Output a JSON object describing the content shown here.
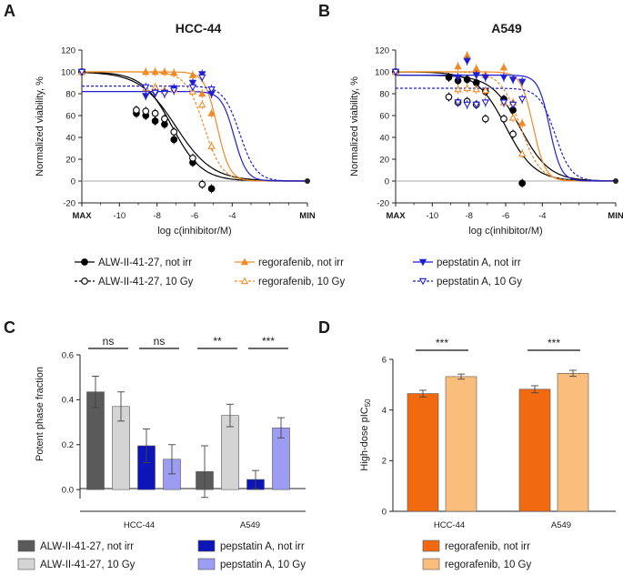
{
  "panels": {
    "A": {
      "letter": "A",
      "title": "HCC-44",
      "ylabel": "Normalized viability, %",
      "xlabel": "log c(inhibitor/M)",
      "yticks": [
        "-20",
        "0",
        "20",
        "40",
        "60",
        "80",
        "100",
        "120"
      ],
      "xticks": [
        "MAX",
        "-10",
        "-8",
        "-6",
        "-4",
        "MIN"
      ]
    },
    "B": {
      "letter": "B",
      "title": "A549",
      "ylabel": "Normalized viability, %",
      "xlabel": "log c(inhibitor/M)",
      "yticks": [
        "-20",
        "0",
        "20",
        "40",
        "60",
        "80",
        "100",
        "120"
      ],
      "xticks": [
        "MAX",
        "-10",
        "-8",
        "-6",
        "-4",
        "MIN"
      ]
    },
    "C": {
      "letter": "C",
      "ylabel": "Potent phase fraction",
      "yticks": [
        "0.0",
        "0.2",
        "0.4",
        "0.6"
      ],
      "groups": [
        "HCC-44",
        "A549"
      ],
      "sig_labels": [
        "ns",
        "ns",
        "**",
        "***"
      ]
    },
    "D": {
      "letter": "D",
      "ylabel_main": "High-dose pIC",
      "ylabel_sub": "50",
      "yticks": [
        "0",
        "2",
        "4",
        "6"
      ],
      "groups": [
        "HCC-44",
        "A549"
      ],
      "sig_labels": [
        "***",
        "***"
      ]
    }
  },
  "legends": {
    "AB": [
      {
        "label": "ALW-II-41-27, not irr",
        "color": "#000000"
      },
      {
        "label": "ALW-II-41-27, 10 Gy",
        "color": "#000000"
      },
      {
        "label": "regorafenib, not irr",
        "color": "#f08a24"
      },
      {
        "label": "regorafenib, 10 Gy",
        "color": "#f08a24"
      },
      {
        "label": "pepstatin A, not irr",
        "color": "#1f1fd6"
      },
      {
        "label": "pepstatin A, 10 Gy",
        "color": "#1f1fd6"
      }
    ],
    "C": [
      {
        "label": "ALW-II-41-27, not irr",
        "color": "#5a5a5a"
      },
      {
        "label": "ALW-II-41-27, 10 Gy",
        "color": "#d4d4d4"
      },
      {
        "label": "pepstatin A, not irr",
        "color": "#0d14b8"
      },
      {
        "label": "pepstatin A, 10 Gy",
        "color": "#9c9cf3"
      }
    ],
    "D": [
      {
        "label": "regorafenib, not irr",
        "color": "#f26a10"
      },
      {
        "label": "regorafenib, 10 Gy",
        "color": "#fbbd7c"
      }
    ]
  },
  "chart_data": [
    {
      "id": "A",
      "type": "line",
      "title": "HCC-44",
      "xlabel": "log c(inhibitor/M)",
      "ylabel": "Normalized viability, %",
      "xlim": [
        -12,
        0
      ],
      "ylim": [
        -20,
        120
      ],
      "series": [
        {
          "name": "ALW-II-41-27, not irr",
          "color": "#000000",
          "dashed": false,
          "marker": "filled-circle",
          "x": [
            -12,
            -9.1,
            -8.6,
            -8.1,
            -7.6,
            -7.1,
            -6.1,
            -5.1
          ],
          "y": [
            100,
            62,
            60,
            55,
            52,
            38,
            17,
            -7
          ]
        },
        {
          "name": "ALW-II-41-27, 10 Gy",
          "color": "#000000",
          "dashed": false,
          "marker": "open-circle",
          "x": [
            -12,
            -9.1,
            -8.6,
            -8.1,
            -7.6,
            -7.1,
            -6.1,
            -5.6
          ],
          "y": [
            100,
            65,
            64,
            62,
            57,
            45,
            21,
            -3
          ]
        },
        {
          "name": "regorafenib, not irr",
          "color": "#f08a24",
          "dashed": false,
          "marker": "filled-triangle",
          "x": [
            -12,
            -8.6,
            -8.1,
            -7.6,
            -7.1,
            -6.1,
            -5.6,
            -5.1
          ],
          "y": [
            100,
            100,
            100,
            100,
            99,
            97,
            80,
            62
          ]
        },
        {
          "name": "regorafenib, 10 Gy",
          "color": "#f08a24",
          "dashed": true,
          "marker": "open-triangle",
          "x": [
            -12,
            -8.6,
            -8.1,
            -7.6,
            -7.1,
            -6.1,
            -5.6,
            -5.1
          ],
          "y": [
            100,
            85,
            86,
            83,
            84,
            82,
            70,
            32
          ]
        },
        {
          "name": "pepstatin A, not irr",
          "color": "#1f1fd6",
          "dashed": false,
          "marker": "filled-down-triangle",
          "x": [
            -12,
            -8.6,
            -8.1,
            -7.6,
            -7.1,
            -6.1,
            -5.6,
            -5.1
          ],
          "y": [
            100,
            78,
            80,
            81,
            85,
            90,
            98,
            80
          ]
        },
        {
          "name": "pepstatin A, 10 Gy",
          "color": "#1f1fd6",
          "dashed": true,
          "marker": "open-down-triangle",
          "x": [
            -12,
            -8.6,
            -8.1,
            -7.6,
            -7.1,
            -6.1,
            -5.6,
            -5.1
          ],
          "y": [
            100,
            86,
            81,
            80,
            83,
            86,
            95,
            84
          ]
        }
      ],
      "fits": [
        {
          "series": "ALW-II-41-27, not irr",
          "top": 100,
          "bottom": 0,
          "logIC50": -7.2,
          "hill": 0.55
        },
        {
          "series": "ALW-II-41-27, 10 Gy",
          "top": 100,
          "bottom": 0,
          "logIC50": -7.0,
          "hill": 0.45
        },
        {
          "series": "regorafenib, not irr",
          "top": 100,
          "bottom": 0,
          "logIC50": -4.8,
          "hill": 1.3
        },
        {
          "series": "regorafenib, 10 Gy",
          "top": 100,
          "bottom": 0,
          "logIC50": -5.5,
          "hill": 0.9
        },
        {
          "series": "pepstatin A, not irr",
          "top": 82,
          "bottom": 0,
          "logIC50": -3.9,
          "hill": 1.3
        },
        {
          "series": "pepstatin A, 10 Gy",
          "top": 87,
          "bottom": 0,
          "logIC50": -3.6,
          "hill": 1.0
        }
      ]
    },
    {
      "id": "B",
      "type": "line",
      "title": "A549",
      "xlabel": "log c(inhibitor/M)",
      "ylabel": "Normalized viability, %",
      "xlim": [
        -12,
        0
      ],
      "ylim": [
        -20,
        120
      ],
      "series": [
        {
          "name": "ALW-II-41-27, not irr",
          "color": "#000000",
          "dashed": false,
          "marker": "filled-circle",
          "x": [
            -12,
            -9.1,
            -8.6,
            -8.1,
            -7.6,
            -7.1,
            -6.1,
            -5.6,
            -5.1
          ],
          "y": [
            100,
            95,
            92,
            93,
            90,
            82,
            75,
            65,
            -2
          ]
        },
        {
          "name": "ALW-II-41-27, 10 Gy",
          "color": "#000000",
          "dashed": false,
          "marker": "open-circle",
          "x": [
            -12,
            -9.1,
            -8.6,
            -8.1,
            -7.6,
            -7.1,
            -6.1,
            -5.6
          ],
          "y": [
            100,
            77,
            72,
            73,
            70,
            57,
            57,
            43
          ]
        },
        {
          "name": "regorafenib, not irr",
          "color": "#f08a24",
          "dashed": false,
          "marker": "filled-triangle",
          "x": [
            -12,
            -8.6,
            -8.1,
            -7.6,
            -7.1,
            -6.1,
            -5.6,
            -5.1
          ],
          "y": [
            100,
            105,
            115,
            103,
            97,
            104,
            72,
            53
          ]
        },
        {
          "name": "regorafenib, 10 Gy",
          "color": "#f08a24",
          "dashed": true,
          "marker": "open-triangle",
          "x": [
            -12,
            -8.6,
            -8.1,
            -7.6,
            -7.1,
            -6.1,
            -5.6,
            -5.1
          ],
          "y": [
            100,
            84,
            85,
            84,
            83,
            72,
            58,
            25
          ]
        },
        {
          "name": "pepstatin A, not irr",
          "color": "#1f1fd6",
          "dashed": false,
          "marker": "filled-down-triangle",
          "x": [
            -12,
            -8.6,
            -8.1,
            -7.6,
            -7.1,
            -6.1,
            -5.6,
            -5.1
          ],
          "y": [
            100,
            95,
            110,
            97,
            95,
            95,
            93,
            91
          ]
        },
        {
          "name": "pepstatin A, 10 Gy",
          "color": "#1f1fd6",
          "dashed": true,
          "marker": "open-down-triangle",
          "x": [
            -12,
            -8.6,
            -8.1,
            -7.6,
            -7.1,
            -6.1,
            -5.6,
            -5.1
          ],
          "y": [
            100,
            72,
            70,
            70,
            72,
            72,
            70,
            75
          ]
        }
      ],
      "fits": [
        {
          "series": "ALW-II-41-27, not irr",
          "top": 97,
          "bottom": 0,
          "logIC50": -5.2,
          "hill": 0.55
        },
        {
          "series": "ALW-II-41-27, 10 Gy",
          "top": 100,
          "bottom": 0,
          "logIC50": -6.0,
          "hill": 0.55
        },
        {
          "series": "regorafenib, not irr",
          "top": 100,
          "bottom": 0,
          "logIC50": -4.5,
          "hill": 1.3
        },
        {
          "series": "regorafenib, 10 Gy",
          "top": 100,
          "bottom": 0,
          "logIC50": -5.2,
          "hill": 0.8
        },
        {
          "series": "pepstatin A, not irr",
          "top": 97,
          "bottom": 0,
          "logIC50": -3.6,
          "hill": 1.4
        },
        {
          "series": "pepstatin A, 10 Gy",
          "top": 85,
          "bottom": 0,
          "logIC50": -3.3,
          "hill": 1.0
        }
      ]
    },
    {
      "id": "C",
      "type": "bar",
      "ylabel": "Potent phase fraction",
      "ylim": [
        -0.04,
        0.6
      ],
      "categories": [
        "HCC-44",
        "A549"
      ],
      "series": [
        {
          "name": "ALW-II-41-27, not irr",
          "color": "#5a5a5a",
          "values": [
            0.435,
            0.08
          ],
          "errors": [
            0.07,
            0.115
          ]
        },
        {
          "name": "ALW-II-41-27, 10 Gy",
          "color": "#d4d4d4",
          "values": [
            0.37,
            0.33
          ],
          "errors": [
            0.065,
            0.05
          ]
        },
        {
          "name": "pepstatin A, not irr",
          "color": "#0d14b8",
          "values": [
            0.195,
            0.045
          ],
          "errors": [
            0.075,
            0.04
          ]
        },
        {
          "name": "pepstatin A, 10 Gy",
          "color": "#9c9cf3",
          "values": [
            0.135,
            0.275
          ],
          "errors": [
            0.065,
            0.045
          ]
        }
      ],
      "annotations": [
        "ns",
        "ns",
        "**",
        "***"
      ]
    },
    {
      "id": "D",
      "type": "bar",
      "ylabel": "High-dose pIC50",
      "ylim": [
        0,
        6
      ],
      "categories": [
        "HCC-44",
        "A549"
      ],
      "series": [
        {
          "name": "regorafenib, not irr",
          "color": "#f26a10",
          "values": [
            4.65,
            4.82
          ],
          "errors": [
            0.13,
            0.14
          ]
        },
        {
          "name": "regorafenib, 10 Gy",
          "color": "#fbbd7c",
          "values": [
            5.32,
            5.45
          ],
          "errors": [
            0.1,
            0.12
          ]
        }
      ],
      "annotations": [
        "***",
        "***"
      ]
    }
  ]
}
